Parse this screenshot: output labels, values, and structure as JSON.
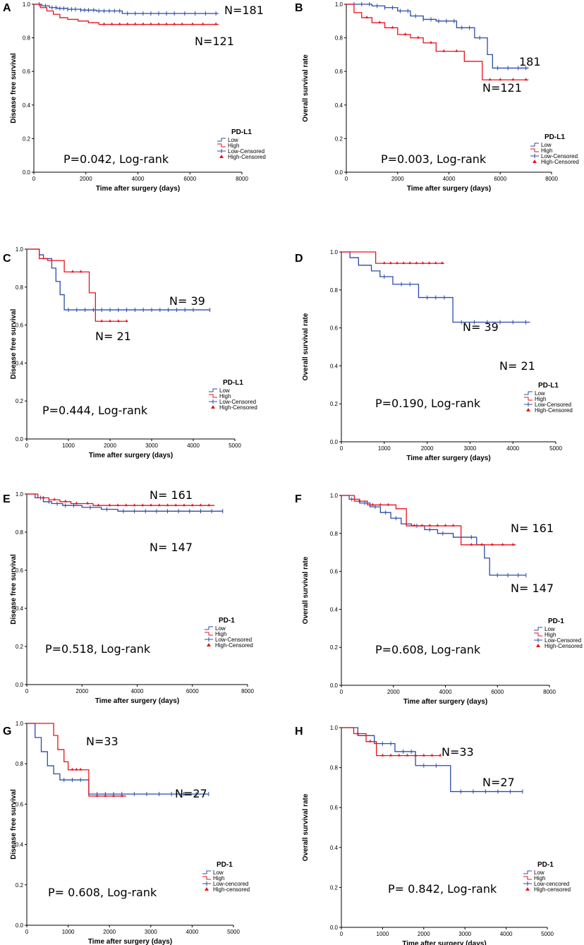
{
  "colors": {
    "low": "#2b4ba8",
    "high": "#e8121c",
    "axis": "#000000"
  },
  "chart_data": [
    {
      "panel": "A",
      "type": "line",
      "title": "",
      "xlabel": "Time after surgery (days)",
      "ylabel": "Disease free survival",
      "xlim": [
        0,
        8000
      ],
      "ylim": [
        0,
        1.0
      ],
      "xticks": [
        0,
        2000,
        4000,
        6000,
        8000
      ],
      "yticks": [
        0.0,
        0.2,
        0.4,
        0.6,
        0.8,
        1.0
      ],
      "pvalue_text": "P=0.042, Log-rank",
      "legend": {
        "title": "PD-L1",
        "entries": [
          "Low",
          "High",
          "Low-Censored",
          "High-Censored"
        ]
      },
      "series": [
        {
          "name": "Low",
          "n_label": "N=181",
          "x": [
            0,
            300,
            600,
            900,
            1300,
            1800,
            2400,
            3400,
            7100
          ],
          "values": [
            1.0,
            0.99,
            0.98,
            0.975,
            0.97,
            0.965,
            0.96,
            0.945,
            0.945
          ],
          "censored_x": [
            200,
            450,
            700,
            850,
            1000,
            1150,
            1300,
            1450,
            1600,
            1800,
            1950,
            2100,
            2300,
            2500,
            2700,
            2900,
            3100,
            3300,
            3600,
            3900,
            4200,
            4500,
            4800,
            5100,
            5400,
            5800,
            6200,
            6600,
            7000
          ]
        },
        {
          "name": "High",
          "n_label": "N=121",
          "x": [
            0,
            250,
            500,
            750,
            1000,
            1300,
            1700,
            2100,
            2500,
            7100
          ],
          "values": [
            1.0,
            0.98,
            0.96,
            0.94,
            0.92,
            0.91,
            0.9,
            0.89,
            0.88,
            0.88
          ],
          "censored_x": [
            2700,
            3000,
            3300,
            3600,
            3900,
            4200,
            4500,
            4800,
            5100,
            5400,
            5700,
            6100,
            6500,
            7000
          ]
        }
      ]
    },
    {
      "panel": "B",
      "type": "line",
      "title": "",
      "xlabel": "Time after surgery (days)",
      "ylabel": "Overall survival rate",
      "xlim": [
        0,
        8000
      ],
      "ylim": [
        0,
        1.0
      ],
      "xticks": [
        0,
        2000,
        4000,
        6000,
        8000
      ],
      "yticks": [
        0.0,
        0.2,
        0.4,
        0.6,
        0.8,
        1.0
      ],
      "pvalue_text": "P=0.003, Log-rank",
      "legend": {
        "title": "PD-L1",
        "entries": [
          "Low",
          "High",
          "Low-Censored",
          "High-Censored"
        ]
      },
      "series": [
        {
          "name": "Low",
          "n_label": "181",
          "x": [
            0,
            1000,
            1500,
            2000,
            2500,
            3000,
            3500,
            4300,
            5000,
            5500,
            5700,
            7100
          ],
          "values": [
            1.0,
            0.99,
            0.98,
            0.96,
            0.93,
            0.91,
            0.9,
            0.86,
            0.8,
            0.7,
            0.62,
            0.62
          ],
          "censored_x": [
            300,
            600,
            900,
            1200,
            1500,
            1800,
            2100,
            2400,
            2700,
            3000,
            3300,
            3600,
            3900,
            4200,
            4500,
            4800,
            5200,
            5900,
            6300,
            6700,
            7000
          ]
        },
        {
          "name": "High",
          "n_label": "N=121",
          "x": [
            0,
            300,
            600,
            1000,
            1500,
            2000,
            2500,
            3000,
            3500,
            4600,
            5300,
            7100
          ],
          "values": [
            1.0,
            0.95,
            0.92,
            0.89,
            0.86,
            0.82,
            0.8,
            0.77,
            0.72,
            0.66,
            0.55,
            0.55
          ],
          "censored_x": [
            800,
            1300,
            1800,
            2300,
            2800,
            3300,
            3800,
            4300,
            5600,
            6000,
            6500,
            7000
          ]
        }
      ]
    },
    {
      "panel": "C",
      "type": "line",
      "title": "",
      "xlabel": "Time after surgery (days)",
      "ylabel": "Disease free survival",
      "xlim": [
        0,
        5000
      ],
      "ylim": [
        0,
        1.0
      ],
      "xticks": [
        0,
        1000,
        2000,
        3000,
        4000,
        5000
      ],
      "yticks": [
        0.0,
        0.2,
        0.4,
        0.6,
        0.8,
        1.0
      ],
      "pvalue_text": "P=0.444, Log-rank",
      "legend": {
        "title": "PD-L1",
        "entries": [
          "Low",
          "High",
          "Low-Censored",
          "High-Censored"
        ]
      },
      "series": [
        {
          "name": "Low",
          "n_label": "N= 39",
          "x": [
            0,
            300,
            400,
            600,
            700,
            800,
            900,
            4400
          ],
          "values": [
            1.0,
            0.97,
            0.95,
            0.9,
            0.83,
            0.76,
            0.68,
            0.68
          ],
          "censored_x": [
            1000,
            1200,
            1400,
            1600,
            1800,
            2000,
            2200,
            2400,
            2600,
            2800,
            3000,
            3200,
            3400,
            3600,
            3800,
            4000,
            4400
          ]
        },
        {
          "name": "High",
          "n_label": "N= 21",
          "x": [
            0,
            300,
            500,
            900,
            1500,
            1650,
            2400
          ],
          "values": [
            1.0,
            0.95,
            0.94,
            0.88,
            0.77,
            0.62,
            0.62
          ],
          "censored_x": [
            1100,
            1300,
            1800,
            2000,
            2200,
            2400
          ]
        }
      ]
    },
    {
      "panel": "D",
      "type": "line",
      "title": "",
      "xlabel": "Time after surgery (days)",
      "ylabel": "Overall survival rate",
      "xlim": [
        0,
        5000
      ],
      "ylim": [
        0,
        1.0
      ],
      "xticks": [
        0,
        1000,
        2000,
        3000,
        4000,
        5000
      ],
      "yticks": [
        0.0,
        0.2,
        0.4,
        0.6,
        0.8,
        1.0
      ],
      "pvalue_text": "P=0.190, Log-rank",
      "legend": {
        "title": "PD-L1",
        "entries": [
          "Low",
          "High",
          "Low-Censored",
          "High-Censored"
        ]
      },
      "series": [
        {
          "name": "Low",
          "n_label": "N= 39",
          "x": [
            0,
            200,
            400,
            700,
            900,
            1200,
            1800,
            2600,
            4400
          ],
          "values": [
            1.0,
            0.97,
            0.93,
            0.9,
            0.87,
            0.83,
            0.76,
            0.63,
            0.63
          ],
          "censored_x": [
            1000,
            1400,
            1600,
            2000,
            2200,
            2400,
            2800,
            3100,
            3400,
            3700,
            4000,
            4300
          ]
        },
        {
          "name": "High",
          "n_label": "N= 21",
          "x": [
            0,
            800,
            2400
          ],
          "values": [
            1.0,
            0.94,
            0.94
          ],
          "censored_x": [
            1000,
            1150,
            1300,
            1450,
            1600,
            1750,
            1900,
            2050,
            2200,
            2350
          ]
        }
      ]
    },
    {
      "panel": "E",
      "type": "line",
      "title": "",
      "xlabel": "Time after surgery (days)",
      "ylabel": "Disease free survival",
      "xlim": [
        0,
        8000
      ],
      "ylim": [
        0,
        1.0
      ],
      "xticks": [
        0,
        2000,
        4000,
        6000,
        8000
      ],
      "yticks": [
        0.0,
        0.2,
        0.4,
        0.6,
        0.8,
        1.0
      ],
      "pvalue_text": "P=0.518, Log-rank",
      "legend": {
        "title": "PD-1",
        "entries": [
          "Low",
          "High",
          "Low-Censored",
          "High-Censored"
        ]
      },
      "series": [
        {
          "name": "Low",
          "n_label": "N= 147",
          "x": [
            0,
            300,
            600,
            900,
            1300,
            2000,
            2700,
            3300,
            7100
          ],
          "values": [
            1.0,
            0.98,
            0.96,
            0.95,
            0.94,
            0.93,
            0.92,
            0.91,
            0.91
          ],
          "censored_x": [
            500,
            800,
            1100,
            1400,
            1700,
            2300,
            2900,
            3500,
            3900,
            4300,
            4700,
            5100,
            5500,
            5900,
            6300,
            6700,
            7100
          ]
        },
        {
          "name": "High",
          "n_label": "N= 161",
          "x": [
            0,
            400,
            800,
            1200,
            1600,
            2400,
            6800
          ],
          "values": [
            1.0,
            0.98,
            0.97,
            0.96,
            0.95,
            0.94,
            0.94
          ],
          "censored_x": [
            600,
            1000,
            1400,
            1800,
            2200,
            2600,
            3000,
            3300,
            3600,
            3900,
            4200,
            4500,
            4800,
            5100,
            5400,
            5700,
            6000,
            6300,
            6600
          ]
        }
      ]
    },
    {
      "panel": "F",
      "type": "line",
      "title": "",
      "xlabel": "Time after surgery (days)",
      "ylabel": "Overall survival rate",
      "xlim": [
        0,
        8000
      ],
      "ylim": [
        0,
        1.0
      ],
      "xticks": [
        0,
        2000,
        4000,
        6000,
        8000
      ],
      "yticks": [
        0.0,
        0.2,
        0.4,
        0.6,
        0.8,
        1.0
      ],
      "pvalue_text": "P=0.608, Log-rank",
      "legend": {
        "title": "PD-1",
        "entries": [
          "Low",
          "High",
          "Low-Censored",
          "High-Censored"
        ]
      },
      "series": [
        {
          "name": "Low",
          "n_label": "N= 147",
          "x": [
            0,
            300,
            700,
            1100,
            1500,
            1900,
            2300,
            2700,
            3200,
            3700,
            4300,
            5200,
            5500,
            5700,
            7100
          ],
          "values": [
            1.0,
            0.98,
            0.96,
            0.94,
            0.91,
            0.88,
            0.85,
            0.84,
            0.82,
            0.8,
            0.78,
            0.74,
            0.67,
            0.58,
            0.58
          ],
          "censored_x": [
            400,
            900,
            1300,
            1700,
            2100,
            2500,
            2900,
            3400,
            3900,
            4600,
            5000,
            6000,
            6400,
            6800,
            7100
          ]
        },
        {
          "name": "High",
          "n_label": "N= 161",
          "x": [
            0,
            500,
            1000,
            2100,
            2500,
            4600,
            6700
          ],
          "values": [
            1.0,
            0.97,
            0.95,
            0.93,
            0.84,
            0.74,
            0.74
          ],
          "censored_x": [
            700,
            1200,
            1500,
            1800,
            2800,
            3100,
            3400,
            3700,
            4000,
            4300,
            5000,
            5400,
            5800,
            6200,
            6600
          ]
        }
      ]
    },
    {
      "panel": "G",
      "type": "line",
      "title": "",
      "xlabel": "Time after surgery (days)",
      "ylabel": "Disease free survival",
      "xlim": [
        0,
        5000
      ],
      "ylim": [
        0,
        1.0
      ],
      "xticks": [
        0,
        1000,
        2000,
        3000,
        4000,
        5000
      ],
      "yticks": [
        0.0,
        0.2,
        0.4,
        0.6,
        0.8,
        1.0
      ],
      "pvalue_text": "P= 0.608, Log-rank",
      "legend": {
        "title": "PD-1",
        "entries": [
          "Low",
          "High",
          "Low-cencored",
          "High-censored"
        ]
      },
      "series": [
        {
          "name": "Low",
          "n_label": "N=27",
          "x": [
            0,
            200,
            350,
            500,
            650,
            800,
            1500,
            4400
          ],
          "values": [
            1.0,
            0.93,
            0.86,
            0.79,
            0.75,
            0.72,
            0.65,
            0.65
          ],
          "censored_x": [
            900,
            1100,
            1300,
            1700,
            1900,
            2100,
            2300,
            2600,
            2900,
            3200,
            3500,
            3800,
            4100,
            4400
          ]
        },
        {
          "name": "High",
          "n_label": "N=33",
          "x": [
            0,
            650,
            750,
            900,
            1000,
            1400,
            1500,
            2400
          ],
          "values": [
            1.0,
            0.94,
            0.87,
            0.81,
            0.77,
            0.77,
            0.64,
            0.64
          ],
          "censored_x": [
            1100,
            1200,
            1300,
            1700,
            1900,
            2100,
            2300
          ]
        }
      ]
    },
    {
      "panel": "H",
      "type": "line",
      "title": "",
      "xlabel": "Time after surgery (days)",
      "ylabel": "Overall survival rate",
      "xlim": [
        0,
        5000
      ],
      "ylim": [
        0,
        1.0
      ],
      "xticks": [
        0,
        1000,
        2000,
        3000,
        4000,
        5000
      ],
      "yticks": [
        0.0,
        0.2,
        0.4,
        0.6,
        0.8,
        1.0
      ],
      "pvalue_text": "P= 0.842, Log-rank",
      "legend": {
        "title": "PD-1",
        "entries": [
          "Low",
          "High",
          "Low-cencored",
          "High-censored"
        ]
      },
      "series": [
        {
          "name": "Low",
          "n_label": "N=27",
          "x": [
            0,
            400,
            800,
            1300,
            1800,
            2650,
            4400
          ],
          "values": [
            1.0,
            0.96,
            0.92,
            0.88,
            0.81,
            0.68,
            0.68
          ],
          "censored_x": [
            600,
            1000,
            1200,
            1500,
            1700,
            2000,
            2300,
            2900,
            3200,
            3500,
            3800,
            4100,
            4400
          ]
        },
        {
          "name": "High",
          "n_label": "N=33",
          "x": [
            0,
            300,
            600,
            850,
            2400
          ],
          "values": [
            1.0,
            0.97,
            0.93,
            0.86,
            0.86
          ],
          "censored_x": [
            400,
            700,
            1000,
            1200,
            1400,
            1600,
            1800,
            2000,
            2200,
            2400
          ]
        }
      ]
    }
  ]
}
